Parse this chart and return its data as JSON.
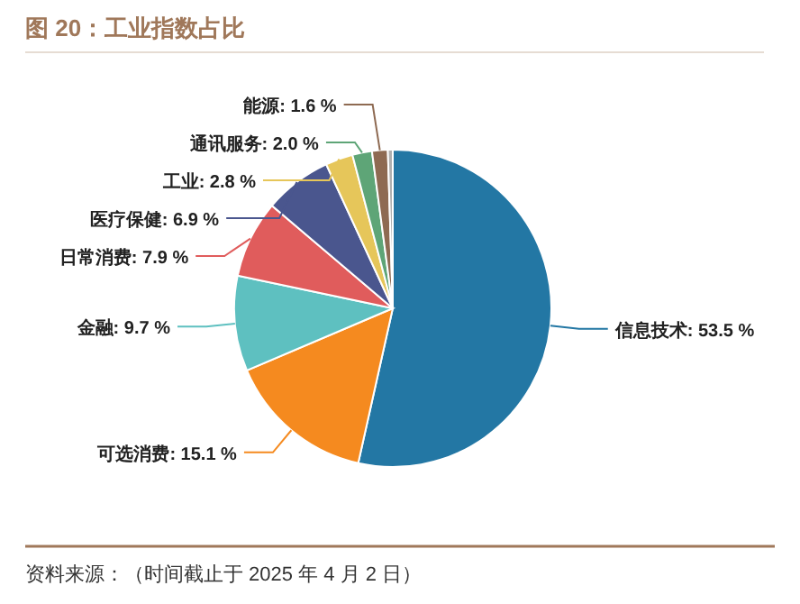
{
  "chart_data": {
    "type": "pie",
    "title": "图 20：工业指数占比",
    "categories": [
      "信息技术",
      "可选消费",
      "金融",
      "日常消费",
      "医疗保健",
      "工业",
      "通讯服务",
      "能源",
      null
    ],
    "values": [
      53.5,
      15.1,
      9.7,
      7.9,
      6.9,
      2.8,
      2.0,
      1.6,
      0.5
    ],
    "value_labels": [
      "53.5 %",
      "15.1 %",
      "9.7 %",
      "7.9 %",
      "6.9 %",
      "2.8 %",
      "2.0 %",
      "1.6 %",
      null
    ],
    "colors": [
      "#2377a4",
      "#f58a1f",
      "#5ec0c0",
      "#e05c5c",
      "#4a568e",
      "#e6c65a",
      "#5ea577",
      "#8e6a52",
      "#b0b0b0"
    ],
    "annotations": [
      "资料来源：（时间截止于 2025 年 4 月 2 日）"
    ]
  }
}
